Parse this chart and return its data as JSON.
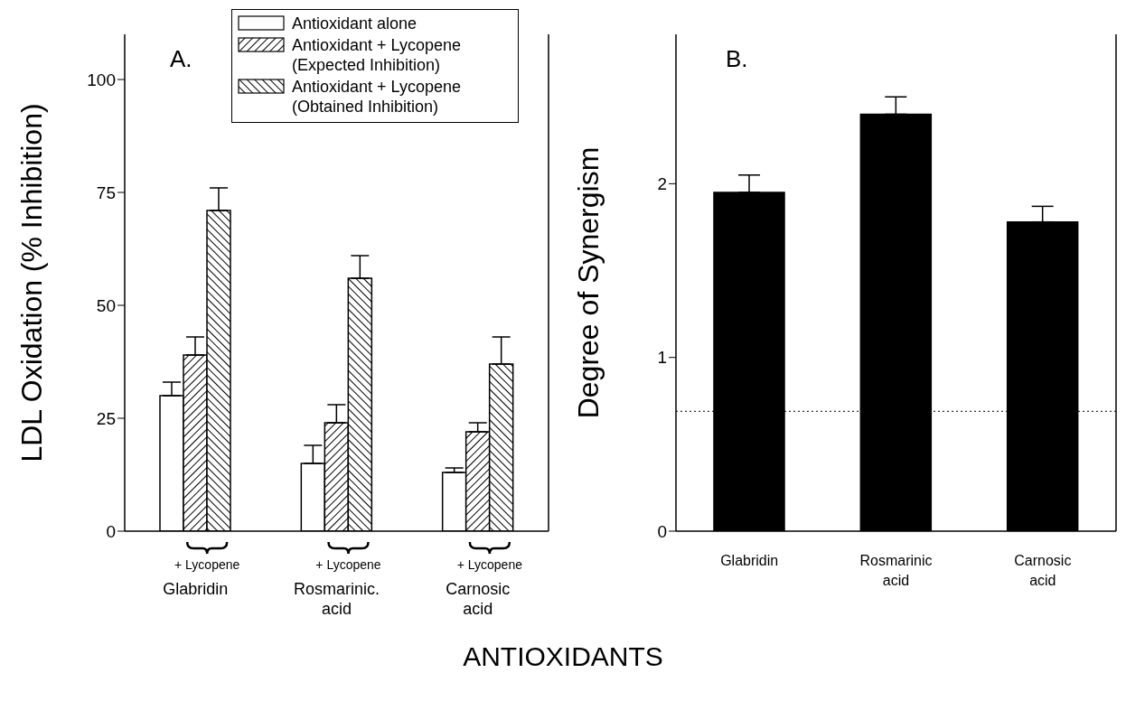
{
  "chart_data": [
    {
      "type": "bar",
      "title": "A.",
      "xlabel": "ANTIOXIDANTS",
      "ylabel": "LDL Oxidation (% Inhibition)",
      "categories": [
        "Glabridin",
        "Rosmarinic.\nacid",
        "Carnosic\nacid"
      ],
      "series": [
        {
          "name": "Antioxidant alone",
          "color": "#ffffff",
          "values": [
            30,
            15,
            13
          ],
          "errors": [
            3,
            4,
            1
          ]
        },
        {
          "name": "Antioxidant + Lycopene\n(Expected Inhibition)",
          "color": "#000000",
          "values": [
            39,
            24,
            22
          ],
          "errors": [
            4,
            4,
            2
          ]
        },
        {
          "name": "Antioxidant + Lycopene\n(Obtained Inhibition)",
          "color": "#000000",
          "values": [
            71,
            56,
            37
          ],
          "errors": [
            5,
            5,
            6
          ]
        }
      ],
      "annotations": [
        "+ Lycopene",
        "+ Lycopene",
        "+ Lycopene"
      ],
      "ylim": [
        0,
        110
      ],
      "yticks": [
        0,
        25,
        50,
        75,
        100
      ],
      "legend": "top right"
    },
    {
      "type": "bar",
      "title": "B.",
      "ylabel": "Degree of Synergism",
      "categories": [
        "Glabridin",
        "Rosmarinic\nacid",
        "Carnosic\nacid"
      ],
      "series": [
        {
          "color": "#000000",
          "values": [
            1.95,
            2.4,
            1.78
          ],
          "errors": [
            0.1,
            0.1,
            0.09
          ]
        }
      ],
      "ylim": [
        0,
        2.86
      ],
      "yticks": [
        0,
        1,
        2
      ],
      "ref_lines": [
        {
          "axis": "y",
          "value": 0.69,
          "line_style": "dotted"
        }
      ]
    }
  ]
}
